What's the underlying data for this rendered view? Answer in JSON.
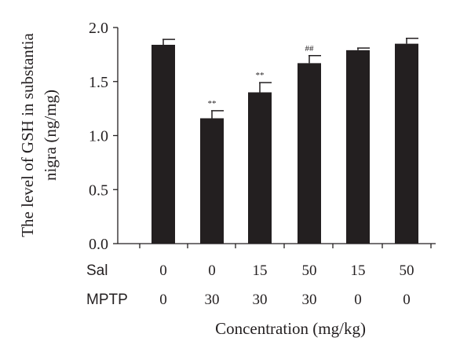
{
  "chart_data": {
    "type": "bar",
    "ylabel_line1": "The level of GSH in substantia",
    "ylabel_line2": "nigra (ng/mg)",
    "xlabel": "Concentration (mg/kg)",
    "ylim": [
      0,
      2.0
    ],
    "yticks": [
      "0.0",
      "0.5",
      "1.0",
      "1.5",
      "2.0"
    ],
    "row_labels": [
      "Sal",
      "MPTP"
    ],
    "sal": [
      "0",
      "0",
      "15",
      "50",
      "15",
      "50"
    ],
    "mptp": [
      "0",
      "30",
      "30",
      "30",
      "0",
      "0"
    ],
    "values": [
      1.84,
      1.16,
      1.4,
      1.67,
      1.79,
      1.85
    ],
    "errors": [
      0.05,
      0.07,
      0.09,
      0.07,
      0.02,
      0.05
    ],
    "annotations": [
      "",
      "**",
      "**",
      "##",
      "",
      ""
    ],
    "bar_color": "#231f20"
  }
}
